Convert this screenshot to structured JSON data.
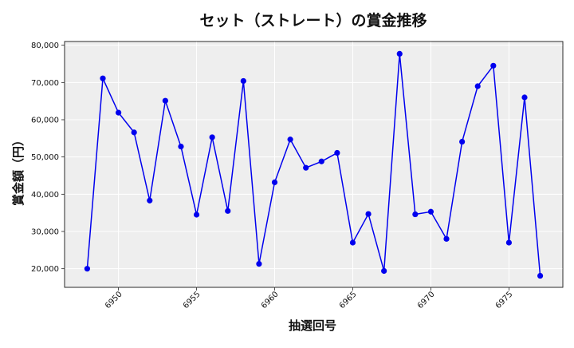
{
  "chart_data": {
    "type": "line",
    "title": "セット（ストレート）の賞金推移",
    "xlabel": "抽選回号",
    "ylabel": "賞金額（円）",
    "x": [
      6948,
      6949,
      6950,
      6951,
      6952,
      6953,
      6954,
      6955,
      6956,
      6957,
      6958,
      6959,
      6960,
      6961,
      6962,
      6963,
      6964,
      6965,
      6966,
      6967,
      6968,
      6969,
      6970,
      6971,
      6972,
      6973,
      6974,
      6975,
      6976,
      6977
    ],
    "series": [
      {
        "values": [
          20000,
          71100,
          61900,
          56600,
          38300,
          65100,
          52800,
          34500,
          55300,
          35500,
          70400,
          21300,
          43200,
          54700,
          47100,
          48800,
          51100,
          27000,
          34700,
          19400,
          77700,
          34600,
          35300,
          28000,
          54100,
          69000,
          74500,
          27000,
          66000,
          18100
        ],
        "color": "#0000ee"
      }
    ],
    "xlim": [
      6946.55,
      6978.45
    ],
    "ylim": [
      15000,
      81000
    ],
    "x_ticks": [
      6950,
      6955,
      6960,
      6965,
      6970,
      6975
    ],
    "y_ticks": [
      20000,
      30000,
      40000,
      50000,
      60000,
      70000,
      80000
    ],
    "y_tick_labels": [
      "20,000",
      "30,000",
      "40,000",
      "50,000",
      "60,000",
      "70,000",
      "80,000"
    ],
    "grid": true,
    "background": "#eeeeee"
  }
}
